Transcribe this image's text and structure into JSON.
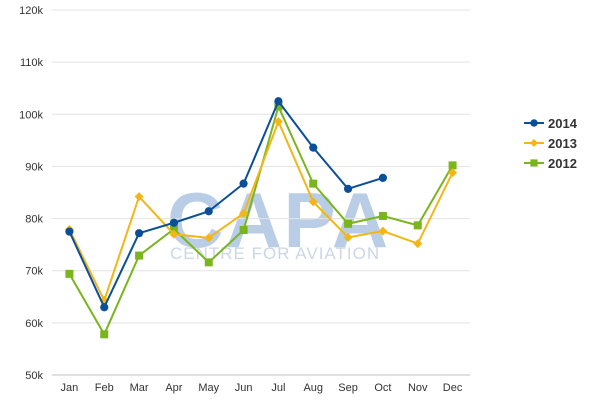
{
  "watermark": {
    "logo": "CAPA",
    "tagline": "CENTRE FOR AVIATION"
  },
  "chart_data": {
    "type": "line",
    "categories": [
      "Jan",
      "Feb",
      "Mar",
      "Apr",
      "May",
      "Jun",
      "Jul",
      "Aug",
      "Sep",
      "Oct",
      "Nov",
      "Dec"
    ],
    "ylim": [
      50000,
      120000
    ],
    "yticks": [
      50000,
      60000,
      70000,
      80000,
      90000,
      100000,
      110000,
      120000
    ],
    "ytick_labels": [
      "50k",
      "60k",
      "70k",
      "80k",
      "90k",
      "100k",
      "110k",
      "120k"
    ],
    "grid": true,
    "legend": "right",
    "title": "",
    "xlabel": "",
    "ylabel": "",
    "series": [
      {
        "name": "2014",
        "color": "#0b4f98",
        "marker": "circle",
        "values": [
          77500,
          63000,
          77200,
          79200,
          81400,
          86700,
          102500,
          93600,
          85700,
          87800,
          null,
          null
        ]
      },
      {
        "name": "2013",
        "color": "#f4b617",
        "marker": "diamond",
        "values": [
          77900,
          64300,
          84200,
          77000,
          76300,
          81000,
          98600,
          83200,
          76400,
          77600,
          75200,
          88800
        ]
      },
      {
        "name": "2012",
        "color": "#7ab51d",
        "marker": "square",
        "values": [
          69400,
          57800,
          72900,
          78000,
          71600,
          77800,
          101500,
          86700,
          79000,
          80500,
          78700,
          90200
        ]
      }
    ]
  }
}
